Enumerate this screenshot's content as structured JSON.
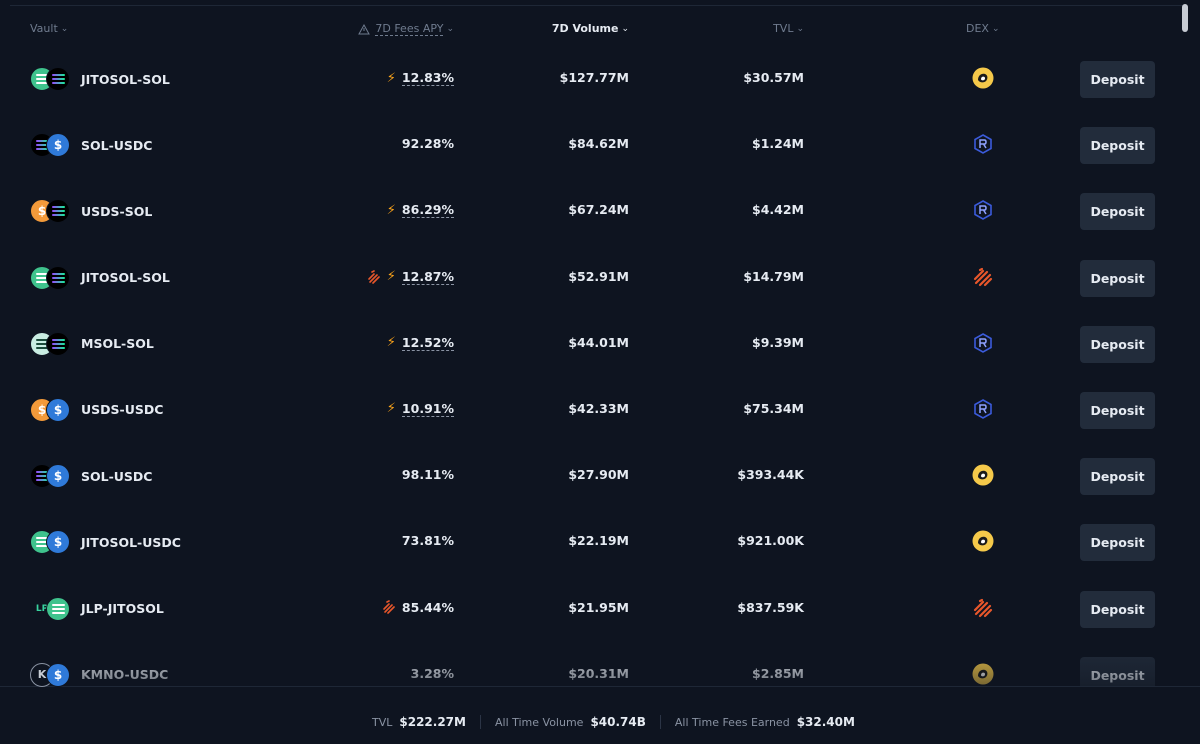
{
  "header": {
    "vault": "Vault",
    "apy": "7D Fees APY",
    "volume": "7D Volume",
    "tvl": "TVL",
    "dex": "DEX"
  },
  "rows": [
    {
      "pair": "JITOSOL-SOL",
      "tokens": [
        "jitosol",
        "sol"
      ],
      "apy": "12.83%",
      "boost": true,
      "stripes": false,
      "volume": "$127.77M",
      "tvl": "$30.57M",
      "dex": "orca-icon",
      "deposit": "Deposit"
    },
    {
      "pair": "SOL-USDC",
      "tokens": [
        "sol",
        "usdc"
      ],
      "apy": "92.28%",
      "boost": false,
      "stripes": false,
      "volume": "$84.62M",
      "tvl": "$1.24M",
      "dex": "raydium-icon",
      "deposit": "Deposit"
    },
    {
      "pair": "USDS-SOL",
      "tokens": [
        "usds",
        "sol"
      ],
      "apy": "86.29%",
      "boost": true,
      "stripes": false,
      "volume": "$67.24M",
      "tvl": "$4.42M",
      "dex": "raydium-icon",
      "deposit": "Deposit"
    },
    {
      "pair": "JITOSOL-SOL",
      "tokens": [
        "jitosol",
        "sol"
      ],
      "apy": "12.87%",
      "boost": true,
      "stripes": true,
      "volume": "$52.91M",
      "tvl": "$14.79M",
      "dex": "meteora-icon",
      "deposit": "Deposit"
    },
    {
      "pair": "MSOL-SOL",
      "tokens": [
        "msol",
        "sol"
      ],
      "apy": "12.52%",
      "boost": true,
      "stripes": false,
      "volume": "$44.01M",
      "tvl": "$9.39M",
      "dex": "raydium-icon",
      "deposit": "Deposit"
    },
    {
      "pair": "USDS-USDC",
      "tokens": [
        "usds",
        "usdc"
      ],
      "apy": "10.91%",
      "boost": true,
      "stripes": false,
      "volume": "$42.33M",
      "tvl": "$75.34M",
      "dex": "raydium-icon",
      "deposit": "Deposit"
    },
    {
      "pair": "SOL-USDC",
      "tokens": [
        "sol",
        "usdc"
      ],
      "apy": "98.11%",
      "boost": false,
      "stripes": false,
      "volume": "$27.90M",
      "tvl": "$393.44K",
      "dex": "orca-icon",
      "deposit": "Deposit"
    },
    {
      "pair": "JITOSOL-USDC",
      "tokens": [
        "jitosol",
        "usdc"
      ],
      "apy": "73.81%",
      "boost": false,
      "stripes": false,
      "volume": "$22.19M",
      "tvl": "$921.00K",
      "dex": "orca-icon",
      "deposit": "Deposit"
    },
    {
      "pair": "JLP-JITOSOL",
      "tokens": [
        "jlp",
        "jitosol"
      ],
      "apy": "85.44%",
      "boost": false,
      "stripes": true,
      "volume": "$21.95M",
      "tvl": "$837.59K",
      "dex": "meteora-icon",
      "deposit": "Deposit"
    },
    {
      "pair": "KMNO-USDC",
      "tokens": [
        "kmno",
        "usdc"
      ],
      "apy": "3.28%",
      "boost": false,
      "stripes": false,
      "volume": "$20.31M",
      "tvl": "$2.85M",
      "dex": "orca-icon",
      "deposit": "Deposit"
    }
  ],
  "token_glyphs": {
    "jlp": "LP",
    "kmno": "K",
    "usdc": "$",
    "usds": "$"
  },
  "footer": {
    "tvl_label": "TVL",
    "tvl_value": "$222.27M",
    "volume_label": "All Time Volume",
    "volume_value": "$40.74B",
    "fees_label": "All Time Fees Earned",
    "fees_value": "$32.40M"
  },
  "colors": {
    "background": "#0e1420",
    "button": "#222c3b",
    "boost": "#f7a11a",
    "orca": "#f5c94a",
    "raydium": "#3b5bdb",
    "meteora": "#e8572b"
  }
}
